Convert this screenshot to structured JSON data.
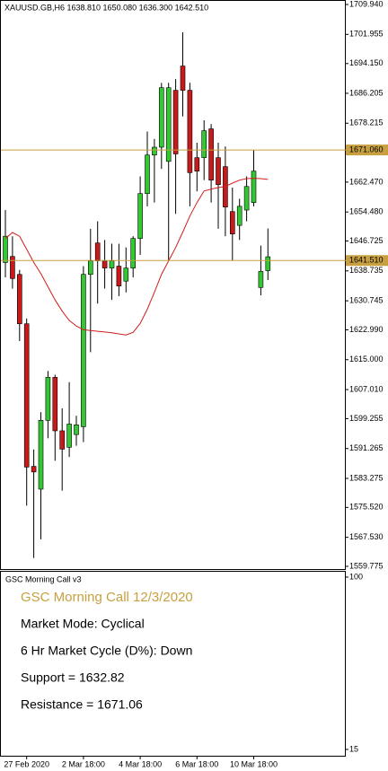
{
  "chart_data": [
    {
      "type": "candlestick",
      "title": "XAUUSD.GB,H6  1638.810 1650.080 1636.300 1642.510",
      "categories": [
        null,
        null,
        null,
        "27 Feb 2020",
        null,
        null,
        null,
        null,
        null,
        null,
        null,
        "2 Mar 18:00",
        null,
        null,
        null,
        null,
        null,
        null,
        null,
        "4 Mar 18:00",
        null,
        null,
        null,
        null,
        null,
        null,
        null,
        "6 Mar 18:00",
        null,
        null,
        null,
        null,
        null,
        null,
        null,
        "10 Mar 18:00",
        null,
        null
      ],
      "open": [
        1641,
        1642.6,
        1637.8,
        1624.6,
        1586.5,
        1580.4,
        1598.8,
        1610.3,
        1596,
        1591.6,
        1595,
        1597.1,
        1637.8,
        1646.2,
        1641.4,
        1639.5,
        1640,
        1636,
        1639.5,
        1647.4,
        1659.4,
        1669.7,
        1671.8,
        1668,
        1687,
        1693.5,
        1687,
        1669,
        1669,
        1676.7,
        1669,
        1666.6,
        1654.6,
        1650.9,
        1655,
        1657,
        1634.3,
        1638.81
      ],
      "high": [
        1655,
        1648,
        1639,
        1626,
        1591,
        1601,
        1612,
        1611,
        1602,
        1609,
        1600,
        1640,
        1650,
        1652,
        1647,
        1646,
        1646,
        1645,
        1648,
        1664,
        1676,
        1674,
        1689,
        1689,
        1690,
        1702.5,
        1689,
        1673,
        1679,
        1678,
        1673,
        1672,
        1661,
        1658,
        1664,
        1671,
        1645.5,
        1650.08
      ],
      "low": [
        1637,
        1634,
        1620,
        1576,
        1562,
        1567,
        1594,
        1588,
        1580,
        1589,
        1592,
        1593,
        1617,
        1630,
        1634,
        1631,
        1632,
        1633,
        1637,
        1643,
        1656,
        1657,
        1666,
        1641.5,
        1654,
        1680,
        1656,
        1660,
        1663,
        1657,
        1650,
        1648,
        1641.5,
        1647,
        1652,
        1656,
        1632.2,
        1636.3
      ],
      "close": [
        1648,
        1636.7,
        1624.6,
        1586.3,
        1585,
        1598.8,
        1610.3,
        1596,
        1591.1,
        1597.8,
        1597.6,
        1637.8,
        1641.4,
        1641.4,
        1639.5,
        1641.4,
        1634.7,
        1639.5,
        1647.4,
        1659.4,
        1669.7,
        1671.8,
        1687.7,
        1687.7,
        1670,
        1687,
        1665,
        1665.4,
        1676.2,
        1663,
        1661.8,
        1655.8,
        1648.6,
        1656,
        1661.3,
        1665.4,
        1638.6,
        1642.51
      ],
      "up_color": "#34c734",
      "down_color": "#c81a1a",
      "ma": {
        "color": "#d11c1c",
        "values": [
          1647.4,
          1649,
          1648,
          1644.5,
          1641,
          1638,
          1634.5,
          1631,
          1628,
          1625.5,
          1624,
          1623,
          1622.8,
          1622.6,
          1622.4,
          1622.2,
          1621.9,
          1621.6,
          1622.3,
          1624.7,
          1628.5,
          1633,
          1637.8,
          1641.4,
          1645,
          1649.1,
          1653.4,
          1657,
          1660.1,
          1660.6,
          1661,
          1661.3,
          1662.2,
          1663,
          1663.4,
          1663.5,
          1663.4,
          1663.2
        ]
      },
      "hlines": [
        {
          "value": 1671.06,
          "label": "1671.060"
        },
        {
          "value": 1641.51,
          "label": "1641.510"
        }
      ],
      "hline_color": "#c8a040",
      "ylim": [
        1559.05,
        1710.9
      ],
      "yticks": [
        {
          "value": 1709.94,
          "label": "1709.940"
        },
        {
          "value": 1701.955,
          "label": "1701.955"
        },
        {
          "value": 1694.15,
          "label": "1694.150"
        },
        {
          "value": 1686.205,
          "label": "1686.205"
        },
        {
          "value": 1678.215,
          "label": "1678.215"
        },
        {
          "value": 1662.47,
          "label": "1662.470"
        },
        {
          "value": 1654.48,
          "label": "1654.480"
        },
        {
          "value": 1646.725,
          "label": "1646.725"
        },
        {
          "value": 1638.735,
          "label": "1638.735"
        },
        {
          "value": 1630.745,
          "label": "1630.745"
        },
        {
          "value": 1622.99,
          "label": "1622.990"
        },
        {
          "value": 1615,
          "label": "1615.000"
        },
        {
          "value": 1607.01,
          "label": "1607.010"
        },
        {
          "value": 1599.255,
          "label": "1599.255"
        },
        {
          "value": 1591.265,
          "label": "1591.265"
        },
        {
          "value": 1583.275,
          "label": "1583.275"
        },
        {
          "value": 1575.52,
          "label": "1575.520"
        },
        {
          "value": 1567.53,
          "label": "1567.530"
        },
        {
          "value": 1559.775,
          "label": "1559.775"
        }
      ]
    },
    {
      "type": "text-panel",
      "title": "GSC Morning Call v3",
      "heading": "GSC Morning Call 12/3/2020",
      "heading_color": "#c8a040",
      "lines": [
        "Market Mode: Cyclical",
        "6 Hr Market Cycle (D%): Down",
        "Support = 1632.82",
        "Resistance = 1671.06"
      ],
      "ylim": [
        15,
        100
      ],
      "yticks": [
        100,
        15
      ]
    }
  ]
}
